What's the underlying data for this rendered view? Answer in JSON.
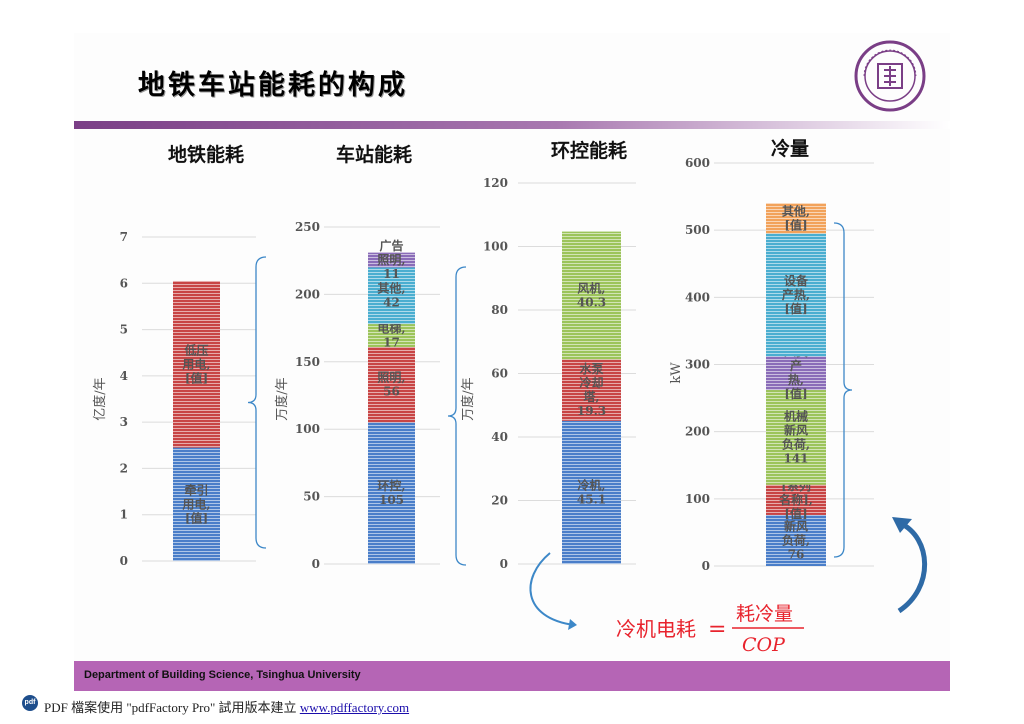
{
  "slide": {
    "title": "地铁车站能耗的构成",
    "footer": "Department of Building Science, Tsinghua University",
    "pdf_note": "PDF 檔案使用 \"pdfFactory Pro\" 試用版本建立 ",
    "pdf_link": "www.pdffactory.com",
    "pdf_icon": "pdf",
    "logo_icon": "tsinghua-university-seal",
    "accent_color": "#7a3e86",
    "footer_color": "#b565b5"
  },
  "formula": {
    "lhs": "冷机电耗",
    "eq": "=",
    "numerator": "耗冷量",
    "denominator": "COP",
    "color": "#e8232d"
  },
  "chart_data": [
    {
      "type": "bar",
      "title": "地铁能耗",
      "ylabel": "亿度/年",
      "ylim": [
        0,
        7
      ],
      "yticks": [
        0,
        1,
        2,
        3,
        4,
        5,
        6,
        7
      ],
      "stacked": true,
      "segments": [
        {
          "label": "牵引\n用电,\n[值]",
          "value": 2.45,
          "color": "#4a7ec9"
        },
        {
          "label": "低压\n用电,\n[值]",
          "value": 3.6,
          "color": "#c84444"
        }
      ]
    },
    {
      "type": "bar",
      "title": "车站能耗",
      "ylabel": "万度/年",
      "ylim": [
        0,
        250
      ],
      "yticks": [
        0,
        50,
        100,
        150,
        200,
        250
      ],
      "stacked": true,
      "segments": [
        {
          "label": "环控,\n105",
          "value": 105,
          "color": "#4a7ec9"
        },
        {
          "label": "照明,\n56",
          "value": 56,
          "color": "#c84444"
        },
        {
          "label": "电梯,\n17",
          "value": 17,
          "color": "#9cc45a"
        },
        {
          "label": "其他,\n42",
          "value": 42,
          "color": "#4aaed0"
        },
        {
          "label": "广告\n照明,\n11",
          "value": 11,
          "color": "#8a6cb8"
        }
      ]
    },
    {
      "type": "bar",
      "title": "环控能耗",
      "ylabel": "万度/年",
      "ylim": [
        0,
        120
      ],
      "yticks": [
        0,
        20,
        40,
        60,
        80,
        100,
        120
      ],
      "stacked": true,
      "segments": [
        {
          "label": "冷机,\n45.1",
          "value": 45.1,
          "color": "#4a7ec9"
        },
        {
          "label": "水泵\n冷却\n塔,\n19.3",
          "value": 19.3,
          "color": "#c84444"
        },
        {
          "label": "风机,\n40.3",
          "value": 40.3,
          "color": "#9cc45a"
        }
      ]
    },
    {
      "type": "bar",
      "title": "冷量",
      "ylabel": "kW",
      "ylim": [
        0,
        600
      ],
      "yticks": [
        0,
        100,
        200,
        300,
        400,
        500,
        600
      ],
      "stacked": true,
      "segments": [
        {
          "label": "新风\n负荷,\n76",
          "value": 76,
          "color": "#4a7ec9"
        },
        {
          "label": "[系列\n名称],\n[值]",
          "value": 45,
          "color": "#c84444"
        },
        {
          "label": "机械\n新风\n负荷,\n141",
          "value": 141,
          "color": "#9cc45a"
        },
        {
          "label": "人员\n产\n热,\n[值]",
          "value": 50,
          "color": "#8a6cb8"
        },
        {
          "label": "设备\n产热,\n[值]",
          "value": 183,
          "color": "#4aaed0"
        },
        {
          "label": "其他,\n[值]",
          "value": 45,
          "color": "#f2a25a"
        }
      ]
    }
  ]
}
